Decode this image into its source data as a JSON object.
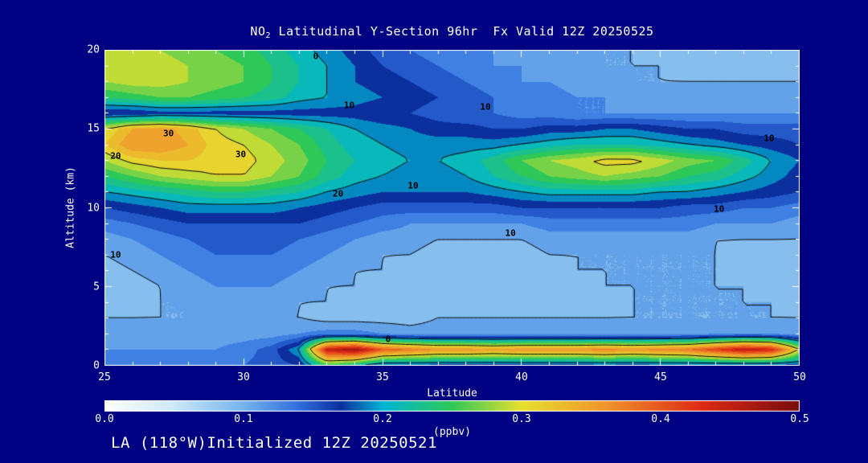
{
  "title": {
    "prefix": "NO",
    "subscript": "2",
    "rest": " Latitudinal Y-Section 96hr  Fx Valid 12Z 20250525"
  },
  "footer": "LA (118°W)Initialized 12Z 20250521",
  "axes": {
    "x_label": "Latitude",
    "y_label": "Altitude (km)",
    "x_ticks": [
      "25",
      "30",
      "35",
      "40",
      "45",
      "50"
    ],
    "x_tick_values": [
      25,
      30,
      35,
      40,
      45,
      50
    ],
    "y_ticks": [
      "0",
      "5",
      "10",
      "15",
      "20"
    ],
    "y_tick_values": [
      0,
      5,
      10,
      15,
      20
    ]
  },
  "colorbar": {
    "ticks": [
      "0.0",
      "0.1",
      "0.2",
      "0.3",
      "0.4",
      "0.5"
    ],
    "tick_values": [
      0.0,
      0.1,
      0.2,
      0.3,
      0.4,
      0.5
    ],
    "unit_label": "(ppbv)",
    "min": 0.0,
    "max": 0.5,
    "stops": [
      [
        0.0,
        "#ffffff"
      ],
      [
        0.05,
        "#cde8f8"
      ],
      [
        0.1,
        "#74b4ec"
      ],
      [
        0.14,
        "#2f6ede"
      ],
      [
        0.17,
        "#0c2f9e"
      ],
      [
        0.2,
        "#00b4d4"
      ],
      [
        0.25,
        "#2ec858"
      ],
      [
        0.3,
        "#e6e02e"
      ],
      [
        0.36,
        "#f0952c"
      ],
      [
        0.43,
        "#de2a14"
      ],
      [
        0.5,
        "#780c0c"
      ]
    ]
  },
  "style_colors": {
    "background": "#000082",
    "axis": "#ffffff",
    "contour": "#000000",
    "text": "#ffffff"
  },
  "chart_data": {
    "type": "heatmap",
    "title": "NO2 Latitudinal Y-Section 96hr  Fx Valid 12Z 20250525",
    "xlabel": "Latitude",
    "ylabel": "Altitude (km)",
    "unit": "ppbv",
    "xlim": [
      25,
      50
    ],
    "ylim": [
      0,
      20
    ],
    "x_latitudes": [
      25,
      26,
      27,
      28,
      29,
      30,
      31,
      32,
      33,
      34,
      35,
      36,
      37,
      38,
      39,
      40,
      41,
      42,
      43,
      44,
      45,
      46,
      47,
      48,
      49,
      50
    ],
    "y_altitudes_km": [
      0,
      1,
      2,
      3,
      4,
      5,
      6,
      7,
      8,
      9,
      10,
      11,
      12,
      13,
      14,
      15,
      16,
      17,
      18,
      19,
      20
    ],
    "values_note": "NO2 (ppbv); rows = altitude 0..20 km ascending, cols = latitude 25..50",
    "values": [
      [
        0.13,
        0.13,
        0.13,
        0.13,
        0.13,
        0.14,
        0.15,
        0.16,
        0.25,
        0.22,
        0.17,
        0.17,
        0.17,
        0.17,
        0.17,
        0.17,
        0.17,
        0.17,
        0.17,
        0.17,
        0.17,
        0.17,
        0.17,
        0.17,
        0.17,
        0.17
      ],
      [
        0.12,
        0.12,
        0.12,
        0.12,
        0.12,
        0.13,
        0.15,
        0.2,
        0.45,
        0.48,
        0.4,
        0.38,
        0.36,
        0.36,
        0.35,
        0.36,
        0.36,
        0.36,
        0.37,
        0.36,
        0.37,
        0.38,
        0.42,
        0.46,
        0.44,
        0.3
      ],
      [
        0.11,
        0.11,
        0.11,
        0.11,
        0.11,
        0.11,
        0.11,
        0.12,
        0.13,
        0.13,
        0.12,
        0.11,
        0.11,
        0.11,
        0.11,
        0.11,
        0.11,
        0.11,
        0.11,
        0.11,
        0.11,
        0.11,
        0.12,
        0.12,
        0.12,
        0.11
      ],
      [
        0.1,
        0.1,
        0.1,
        0.1,
        0.1,
        0.1,
        0.1,
        0.1,
        0.09,
        0.09,
        0.09,
        0.09,
        0.1,
        0.1,
        0.1,
        0.1,
        0.1,
        0.1,
        0.1,
        0.1,
        0.1,
        0.1,
        0.1,
        0.1,
        0.1,
        0.1
      ],
      [
        0.09,
        0.09,
        0.1,
        0.1,
        0.11,
        0.11,
        0.11,
        0.1,
        0.1,
        0.09,
        0.09,
        0.09,
        0.09,
        0.09,
        0.09,
        0.09,
        0.09,
        0.09,
        0.09,
        0.1,
        0.1,
        0.1,
        0.1,
        0.1,
        0.1,
        0.09
      ],
      [
        0.09,
        0.09,
        0.1,
        0.11,
        0.12,
        0.12,
        0.12,
        0.11,
        0.1,
        0.1,
        0.09,
        0.09,
        0.09,
        0.09,
        0.09,
        0.09,
        0.09,
        0.09,
        0.1,
        0.1,
        0.1,
        0.1,
        0.1,
        0.1,
        0.09,
        0.09
      ],
      [
        0.09,
        0.1,
        0.11,
        0.12,
        0.13,
        0.13,
        0.13,
        0.12,
        0.11,
        0.1,
        0.1,
        0.09,
        0.09,
        0.09,
        0.09,
        0.09,
        0.09,
        0.1,
        0.1,
        0.1,
        0.1,
        0.1,
        0.1,
        0.09,
        0.09,
        0.09
      ],
      [
        0.1,
        0.11,
        0.12,
        0.13,
        0.14,
        0.14,
        0.14,
        0.13,
        0.12,
        0.11,
        0.1,
        0.1,
        0.09,
        0.09,
        0.09,
        0.09,
        0.1,
        0.1,
        0.1,
        0.1,
        0.1,
        0.1,
        0.1,
        0.09,
        0.09,
        0.09
      ],
      [
        0.11,
        0.12,
        0.13,
        0.14,
        0.15,
        0.15,
        0.15,
        0.14,
        0.13,
        0.12,
        0.11,
        0.11,
        0.1,
        0.1,
        0.1,
        0.1,
        0.11,
        0.11,
        0.11,
        0.11,
        0.11,
        0.11,
        0.1,
        0.1,
        0.1,
        0.1
      ],
      [
        0.13,
        0.14,
        0.15,
        0.16,
        0.16,
        0.16,
        0.16,
        0.16,
        0.15,
        0.14,
        0.13,
        0.12,
        0.12,
        0.12,
        0.12,
        0.12,
        0.13,
        0.13,
        0.13,
        0.13,
        0.13,
        0.13,
        0.12,
        0.12,
        0.12,
        0.11
      ],
      [
        0.16,
        0.17,
        0.18,
        0.19,
        0.19,
        0.19,
        0.19,
        0.18,
        0.17,
        0.16,
        0.15,
        0.15,
        0.15,
        0.15,
        0.15,
        0.16,
        0.16,
        0.16,
        0.16,
        0.16,
        0.16,
        0.15,
        0.15,
        0.14,
        0.14,
        0.13
      ],
      [
        0.2,
        0.21,
        0.22,
        0.23,
        0.24,
        0.24,
        0.23,
        0.22,
        0.2,
        0.19,
        0.18,
        0.18,
        0.18,
        0.18,
        0.19,
        0.2,
        0.21,
        0.21,
        0.21,
        0.21,
        0.2,
        0.2,
        0.19,
        0.18,
        0.17,
        0.16
      ],
      [
        0.24,
        0.26,
        0.28,
        0.29,
        0.3,
        0.3,
        0.28,
        0.26,
        0.23,
        0.21,
        0.2,
        0.19,
        0.19,
        0.2,
        0.22,
        0.24,
        0.26,
        0.27,
        0.28,
        0.27,
        0.26,
        0.24,
        0.23,
        0.21,
        0.19,
        0.17
      ],
      [
        0.28,
        0.31,
        0.32,
        0.32,
        0.31,
        0.31,
        0.29,
        0.27,
        0.24,
        0.22,
        0.21,
        0.2,
        0.2,
        0.21,
        0.23,
        0.26,
        0.28,
        0.29,
        0.31,
        0.31,
        0.29,
        0.27,
        0.26,
        0.23,
        0.2,
        0.18
      ],
      [
        0.32,
        0.36,
        0.36,
        0.34,
        0.31,
        0.3,
        0.28,
        0.26,
        0.23,
        0.21,
        0.2,
        0.19,
        0.19,
        0.19,
        0.19,
        0.2,
        0.21,
        0.22,
        0.22,
        0.22,
        0.21,
        0.2,
        0.19,
        0.18,
        0.17,
        0.16
      ],
      [
        0.3,
        0.34,
        0.35,
        0.33,
        0.3,
        0.28,
        0.26,
        0.24,
        0.22,
        0.2,
        0.19,
        0.18,
        0.17,
        0.17,
        0.16,
        0.16,
        0.17,
        0.17,
        0.18,
        0.18,
        0.17,
        0.16,
        0.16,
        0.15,
        0.15,
        0.15
      ],
      [
        0.16,
        0.16,
        0.17,
        0.17,
        0.17,
        0.17,
        0.17,
        0.17,
        0.17,
        0.17,
        0.16,
        0.16,
        0.15,
        0.14,
        0.14,
        0.13,
        0.13,
        0.12,
        0.12,
        0.12,
        0.12,
        0.12,
        0.12,
        0.12,
        0.12,
        0.12
      ],
      [
        0.24,
        0.25,
        0.26,
        0.26,
        0.25,
        0.24,
        0.23,
        0.21,
        0.2,
        0.19,
        0.18,
        0.17,
        0.16,
        0.15,
        0.14,
        0.13,
        0.13,
        0.12,
        0.12,
        0.11,
        0.11,
        0.11,
        0.11,
        0.11,
        0.11,
        0.11
      ],
      [
        0.28,
        0.29,
        0.29,
        0.28,
        0.27,
        0.26,
        0.24,
        0.22,
        0.2,
        0.18,
        0.17,
        0.16,
        0.15,
        0.14,
        0.13,
        0.12,
        0.12,
        0.11,
        0.11,
        0.1,
        0.1,
        0.1,
        0.1,
        0.1,
        0.1,
        0.1
      ],
      [
        0.3,
        0.3,
        0.29,
        0.28,
        0.27,
        0.26,
        0.24,
        0.22,
        0.2,
        0.18,
        0.16,
        0.15,
        0.14,
        0.13,
        0.12,
        0.12,
        0.11,
        0.11,
        0.1,
        0.1,
        0.1,
        0.09,
        0.09,
        0.09,
        0.09,
        0.09
      ],
      [
        0.29,
        0.29,
        0.28,
        0.27,
        0.26,
        0.25,
        0.23,
        0.21,
        0.19,
        0.17,
        0.15,
        0.14,
        0.13,
        0.12,
        0.12,
        0.11,
        0.11,
        0.1,
        0.1,
        0.1,
        0.09,
        0.09,
        0.09,
        0.09,
        0.09,
        0.09
      ]
    ],
    "contour_levels_ppbv": [
      0.1,
      0.2,
      0.3
    ],
    "contour_label_values_shown": [
      0,
      10,
      20,
      30
    ],
    "contour_labels": [
      {
        "text": "0",
        "lat": 32.6,
        "alt": 19.6
      },
      {
        "text": "10",
        "lat": 33.8,
        "alt": 16.5
      },
      {
        "text": "10",
        "lat": 38.7,
        "alt": 16.4
      },
      {
        "text": "10",
        "lat": 48.9,
        "alt": 14.4
      },
      {
        "text": "30",
        "lat": 27.3,
        "alt": 14.7
      },
      {
        "text": "20",
        "lat": 25.4,
        "alt": 13.3
      },
      {
        "text": "30",
        "lat": 29.9,
        "alt": 13.4
      },
      {
        "text": "20",
        "lat": 33.4,
        "alt": 10.9
      },
      {
        "text": "10",
        "lat": 36.1,
        "alt": 11.4
      },
      {
        "text": "10",
        "lat": 47.1,
        "alt": 9.9
      },
      {
        "text": "10",
        "lat": 39.6,
        "alt": 8.4
      },
      {
        "text": "10",
        "lat": 25.4,
        "alt": 7.0
      },
      {
        "text": "0",
        "lat": 35.2,
        "alt": 1.7
      }
    ],
    "legend_position": "bottom colorbar",
    "grid": false
  }
}
